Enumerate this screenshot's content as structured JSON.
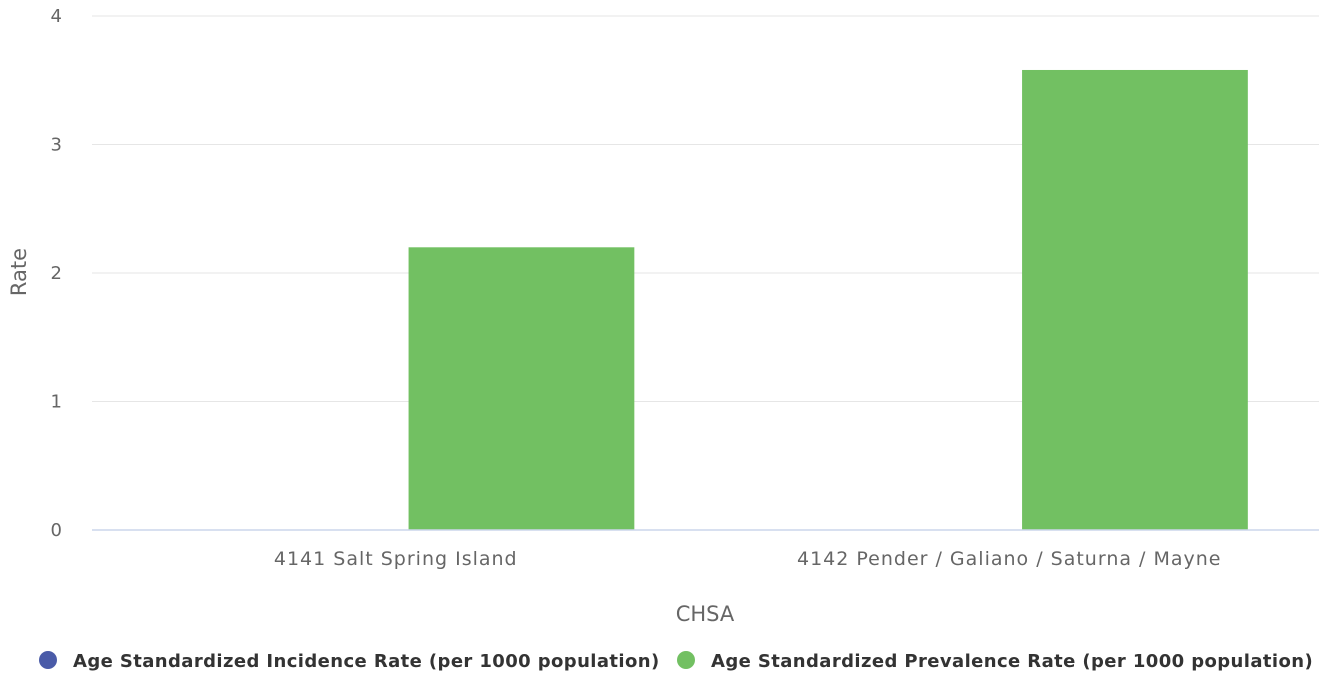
{
  "chart_data": {
    "type": "bar",
    "categories": [
      "4141 Salt Spring Island",
      "4142 Pender / Galiano / Saturna / Mayne"
    ],
    "series": [
      {
        "name": "Age Standardized Incidence Rate (per 1000 population)",
        "color": "#4a5ba8",
        "values": [
          null,
          null
        ]
      },
      {
        "name": "Age Standardized Prevalence Rate (per 1000 population)",
        "color": "#72c062",
        "values": [
          2.2,
          3.58
        ]
      }
    ],
    "xlabel": "CHSA",
    "ylabel": "Rate",
    "ylim": [
      0,
      4
    ],
    "yticks": [
      0,
      1,
      2,
      3,
      4
    ],
    "grid": true,
    "legend_position": "bottom"
  }
}
